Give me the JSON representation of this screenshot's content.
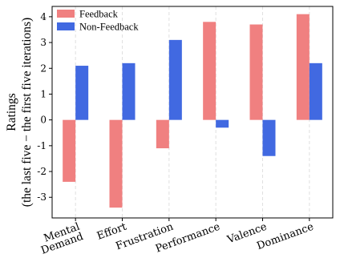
{
  "chart_data": {
    "type": "bar",
    "categories": [
      [
        "Mental",
        "Demand"
      ],
      [
        "Effort"
      ],
      [
        "Frustration"
      ],
      [
        "Performance"
      ],
      [
        "Valence"
      ],
      [
        "Dominance"
      ]
    ],
    "series": [
      {
        "name": "Feedback",
        "color": "#f08080",
        "values": [
          -2.4,
          -3.4,
          -1.1,
          3.8,
          3.7,
          4.1
        ]
      },
      {
        "name": "Non-Feedback",
        "color": "#4169e1",
        "values": [
          2.1,
          2.2,
          3.1,
          -0.3,
          -1.4,
          2.2
        ]
      }
    ],
    "ylabel_lines": [
      "Ratings",
      "(the last five − the first five iterations)"
    ],
    "yticks": [
      -3,
      -2,
      -1,
      0,
      1,
      2,
      3,
      4
    ],
    "ylim": [
      -3.8,
      4.4
    ],
    "grid": "vertical-dashed",
    "legend_position": "top-left"
  }
}
